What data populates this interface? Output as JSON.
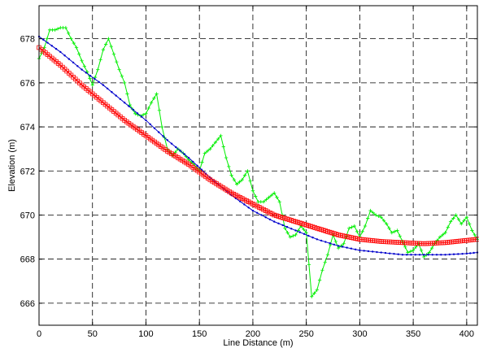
{
  "chart_data": {
    "type": "line",
    "title": "",
    "xlabel": "Line Distance (m)",
    "ylabel": "Elevation (m)",
    "xlim": [
      0,
      410
    ],
    "ylim": [
      665,
      679.5
    ],
    "xticks": [
      0,
      50,
      100,
      150,
      200,
      250,
      300,
      350,
      400
    ],
    "yticks": [
      666,
      668,
      670,
      672,
      674,
      676,
      678
    ],
    "grid": true,
    "grid_style": "dashed",
    "legend": "none",
    "series": [
      {
        "color": "#00ee00",
        "marker": "plus",
        "x": [
          0,
          5,
          10,
          15,
          20,
          25,
          30,
          35,
          40,
          45,
          50,
          55,
          60,
          65,
          70,
          75,
          80,
          85,
          90,
          95,
          100,
          105,
          110,
          115,
          120,
          125,
          130,
          135,
          140,
          145,
          150,
          155,
          160,
          165,
          170,
          175,
          180,
          185,
          190,
          195,
          200,
          205,
          210,
          215,
          220,
          225,
          230,
          235,
          240,
          245,
          250,
          255,
          260,
          265,
          270,
          275,
          280,
          285,
          290,
          295,
          300,
          305,
          310,
          315,
          320,
          325,
          330,
          335,
          340,
          345,
          350,
          355,
          360,
          365,
          370,
          375,
          380,
          385,
          390,
          395,
          400,
          405,
          410
        ],
        "y": [
          677.1,
          677.6,
          678.4,
          678.4,
          678.5,
          678.5,
          678.0,
          677.6,
          677.0,
          676.5,
          675.9,
          676.6,
          677.5,
          678.0,
          677.3,
          676.6,
          676.0,
          675.0,
          674.6,
          674.5,
          674.6,
          675.1,
          675.5,
          674.0,
          673.0,
          672.7,
          673.0,
          672.8,
          672.5,
          672.3,
          672.0,
          672.8,
          673.0,
          673.3,
          673.6,
          672.6,
          671.8,
          671.4,
          671.6,
          672.0,
          671.1,
          670.6,
          670.6,
          670.8,
          671.0,
          670.6,
          669.4,
          669.0,
          669.1,
          669.5,
          669.2,
          666.3,
          666.6,
          667.5,
          668.2,
          669.1,
          668.5,
          668.7,
          669.4,
          669.5,
          669.0,
          669.5,
          670.2,
          670.0,
          669.9,
          669.6,
          669.2,
          669.3,
          668.8,
          668.3,
          668.4,
          668.7,
          668.1,
          668.3,
          668.7,
          669.0,
          669.2,
          669.7,
          670.0,
          669.6,
          669.9,
          669.3,
          668.9
        ]
      },
      {
        "color": "#0000cc",
        "marker": "dot",
        "x": [
          0,
          20,
          40,
          60,
          80,
          100,
          120,
          140,
          160,
          180,
          200,
          220,
          240,
          260,
          280,
          300,
          320,
          340,
          360,
          380,
          400,
          410
        ],
        "y": [
          678.1,
          677.4,
          676.6,
          675.9,
          675.1,
          674.3,
          673.4,
          672.6,
          671.7,
          670.9,
          670.2,
          669.7,
          669.3,
          668.9,
          668.6,
          668.4,
          668.3,
          668.2,
          668.2,
          668.2,
          668.25,
          668.3
        ]
      },
      {
        "color": "#ff0000",
        "marker": "square",
        "x": [
          0,
          20,
          40,
          60,
          80,
          100,
          120,
          140,
          160,
          180,
          200,
          220,
          240,
          260,
          280,
          300,
          320,
          340,
          360,
          380,
          400,
          410
        ],
        "y": [
          677.6,
          676.8,
          675.9,
          675.1,
          674.3,
          673.6,
          672.9,
          672.3,
          671.6,
          671.0,
          670.5,
          670.0,
          669.7,
          669.4,
          669.1,
          668.9,
          668.8,
          668.75,
          668.7,
          668.75,
          668.85,
          668.9
        ]
      }
    ]
  }
}
